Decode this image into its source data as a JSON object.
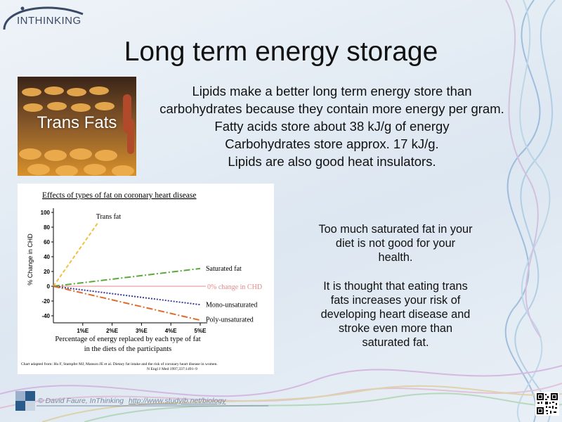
{
  "logo": {
    "text": "INTHINKING"
  },
  "title": "Long term energy storage",
  "photo": {
    "label": "Trans Fats"
  },
  "intro": {
    "lines": [
      "Lipids make a better long term energy store than",
      "carbohydrates because they contain more energy per gram.",
      "Fatty acids store about  38 kJ/g of energy",
      "Carbohydrates store approx. 17 kJ/g.",
      "Lipids are also good heat insulators."
    ]
  },
  "side": {
    "p1": "Too much saturated fat in your diet is not good for your health.",
    "p2": "It is thought that eating trans fats increases your risk of developing heart disease and stroke even more than saturated fat."
  },
  "chart_data": {
    "type": "line",
    "title": "Effects of types of fat on coronary heart disease",
    "ylabel": "% Change in CHD",
    "xlabel_line1": "Percentage of energy replaced by each type of fat",
    "xlabel_line2": "in the diets of the participants",
    "x": [
      0,
      1,
      2,
      3,
      4,
      5
    ],
    "x_tick_labels": [
      "1%E",
      "2%E",
      "3%E",
      "4%E",
      "5%E"
    ],
    "y_ticks": [
      100,
      80,
      60,
      40,
      20,
      0,
      -20,
      -40
    ],
    "ylim": [
      -55,
      100
    ],
    "xlim": [
      0,
      5
    ],
    "grid": false,
    "reference_line": {
      "y": 0,
      "label": "0% change in CHD",
      "color": "#e48a8a"
    },
    "series": [
      {
        "name": "Trans fat",
        "x": [
          0,
          1.5
        ],
        "values": [
          0,
          85
        ],
        "color": "#f0c040",
        "dash": "5,3"
      },
      {
        "name": "Saturated fat",
        "x": [
          0,
          5
        ],
        "values": [
          0,
          24
        ],
        "color": "#5aaa3a",
        "dash": "9,3,2,3"
      },
      {
        "name": "Mono-unsaturated",
        "x": [
          0,
          5
        ],
        "values": [
          0,
          -25
        ],
        "color": "#3a3a9a",
        "dash": "2,2"
      },
      {
        "name": "Poly-unsaturated",
        "x": [
          0,
          5
        ],
        "values": [
          0,
          -46
        ],
        "color": "#e06a2a",
        "dash": "9,3,2,3"
      }
    ],
    "source_line1": "Chart adapted from: Hu F, Stampfer MJ, Manson JE et al. Dietary fat intake and the risk of coronary heart disease in women.",
    "source_line2": "N Engl J Med 1997,337:1491–9"
  },
  "footer": {
    "copyright": "© David Faure, InThinking",
    "url": "http://www.studyib.net/biology"
  },
  "colors": {
    "accent": "#3a4a66",
    "footer_text": "#7a8aa0"
  }
}
